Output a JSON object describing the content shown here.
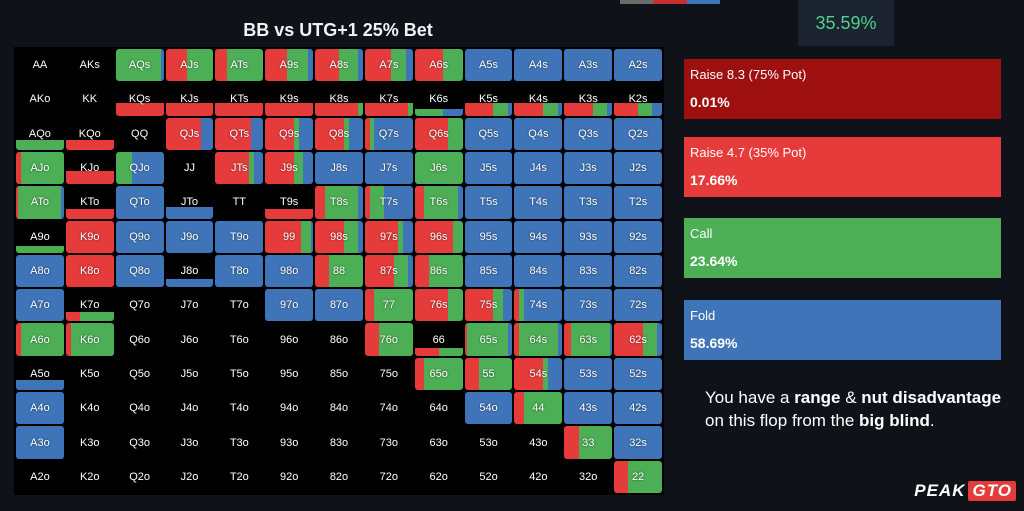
{
  "header": {
    "title": "BB vs UTG+1 25% Bet",
    "top_pct": "35.59%"
  },
  "colors": {
    "raise_big": "#9e0f0f",
    "raise_small": "#e53b3b",
    "call": "#4cae55",
    "fold": "#3f74b8"
  },
  "legend": [
    {
      "name": "Raise 8.3 (75% Pot)",
      "value": "0.01%",
      "color": "#9e0f0f"
    },
    {
      "name": "Raise 4.7 (35% Pot)",
      "value": "17.66%",
      "color": "#e53b3b"
    },
    {
      "name": "Call",
      "value": "23.64%",
      "color": "#4cae55"
    },
    {
      "name": "Fold",
      "value": "58.69%",
      "color": "#3f74b8"
    }
  ],
  "message": {
    "p1": "You have a ",
    "b1": "range",
    "p2": " & ",
    "b2": "nut disadvantage",
    "p3": " on this flop from the ",
    "b3": "big blind",
    "p4": "."
  },
  "logo": {
    "peak": "PEAK",
    "gto": "GTO"
  },
  "range": {
    "rows": [
      [
        "AA",
        "AKs",
        "AQs",
        "AJs",
        "ATs",
        "A9s",
        "A8s",
        "A7s",
        "A6s",
        "A5s",
        "A4s",
        "A3s",
        "A2s"
      ],
      [
        "AKo",
        "KK",
        "KQs",
        "KJs",
        "KTs",
        "K9s",
        "K8s",
        "K7s",
        "K6s",
        "K5s",
        "K4s",
        "K3s",
        "K2s"
      ],
      [
        "AQo",
        "KQo",
        "QQ",
        "QJs",
        "QTs",
        "Q9s",
        "Q8s",
        "Q7s",
        "Q6s",
        "Q5s",
        "Q4s",
        "Q3s",
        "Q2s"
      ],
      [
        "AJo",
        "KJo",
        "QJo",
        "JJ",
        "JTs",
        "J9s",
        "J8s",
        "J7s",
        "J6s",
        "J5s",
        "J4s",
        "J3s",
        "J2s"
      ],
      [
        "ATo",
        "KTo",
        "QTo",
        "JTo",
        "TT",
        "T9s",
        "T8s",
        "T7s",
        "T6s",
        "T5s",
        "T4s",
        "T3s",
        "T2s"
      ],
      [
        "A9o",
        "K9o",
        "Q9o",
        "J9o",
        "T9o",
        "99",
        "98s",
        "97s",
        "96s",
        "95s",
        "94s",
        "93s",
        "92s"
      ],
      [
        "A8o",
        "K8o",
        "Q8o",
        "J8o",
        "T8o",
        "98o",
        "88",
        "87s",
        "86s",
        "85s",
        "84s",
        "83s",
        "82s"
      ],
      [
        "A7o",
        "K7o",
        "Q7o",
        "J7o",
        "T7o",
        "97o",
        "87o",
        "77",
        "76s",
        "75s",
        "74s",
        "73s",
        "72s"
      ],
      [
        "A6o",
        "K6o",
        "Q6o",
        "J6o",
        "T6o",
        "96o",
        "86o",
        "76o",
        "66",
        "65s",
        "64s",
        "63s",
        "62s"
      ],
      [
        "A5o",
        "K5o",
        "Q5o",
        "J5o",
        "T5o",
        "95o",
        "85o",
        "75o",
        "65o",
        "55",
        "54s",
        "53s",
        "52s"
      ],
      [
        "A4o",
        "K4o",
        "Q4o",
        "J4o",
        "T4o",
        "94o",
        "84o",
        "74o",
        "64o",
        "54o",
        "44",
        "43s",
        "42s"
      ],
      [
        "A3o",
        "K3o",
        "Q3o",
        "J3o",
        "T3o",
        "93o",
        "83o",
        "73o",
        "63o",
        "53o",
        "43o",
        "33",
        "32s"
      ],
      [
        "A2o",
        "K2o",
        "Q2o",
        "J2o",
        "T2o",
        "92o",
        "82o",
        "72o",
        "62o",
        "52o",
        "42o",
        "32o",
        "22"
      ]
    ],
    "strategies": {
      "AQs": {
        "h": 1,
        "m": [
          0,
          0,
          0.95,
          0.05
        ]
      },
      "AJs": {
        "h": 1,
        "m": [
          0,
          0.45,
          0.55,
          0
        ]
      },
      "ATs": {
        "h": 1,
        "m": [
          0,
          0.25,
          0.75,
          0
        ]
      },
      "A9s": {
        "h": 1,
        "m": [
          0,
          0.45,
          0.45,
          0.1
        ]
      },
      "A8s": {
        "h": 1,
        "m": [
          0,
          0.5,
          0.4,
          0.1
        ]
      },
      "A7s": {
        "h": 1,
        "m": [
          0,
          0.55,
          0.3,
          0.15
        ]
      },
      "A6s": {
        "h": 1,
        "m": [
          0,
          0.6,
          0.4,
          0
        ]
      },
      "A5s": {
        "h": 1,
        "m": [
          0,
          0,
          0,
          1
        ]
      },
      "A4s": {
        "h": 1,
        "m": [
          0,
          0,
          0,
          1
        ]
      },
      "A3s": {
        "h": 1,
        "m": [
          0,
          0,
          0,
          1
        ]
      },
      "A2s": {
        "h": 1,
        "m": [
          0,
          0,
          0,
          1
        ]
      },
      "KQs": {
        "h": 0.4,
        "m": [
          0,
          1,
          0,
          0
        ]
      },
      "KJs": {
        "h": 0.4,
        "m": [
          0,
          1,
          0,
          0
        ]
      },
      "KTs": {
        "h": 0.4,
        "m": [
          0,
          1,
          0,
          0
        ]
      },
      "K9s": {
        "h": 0.4,
        "m": [
          0,
          1,
          0,
          0
        ]
      },
      "K8s": {
        "h": 0.4,
        "m": [
          0,
          0.9,
          0.1,
          0
        ]
      },
      "K7s": {
        "h": 0.4,
        "m": [
          0,
          0.9,
          0.1,
          0
        ]
      },
      "K6s": {
        "h": 0.2,
        "m": [
          0,
          0,
          0.6,
          0.4
        ]
      },
      "K5s": {
        "h": 0.4,
        "m": [
          0,
          0.6,
          0.3,
          0.1
        ]
      },
      "K4s": {
        "h": 0.4,
        "m": [
          0,
          0.6,
          0.3,
          0.1
        ]
      },
      "K3s": {
        "h": 0.4,
        "m": [
          0,
          0.6,
          0.3,
          0.1
        ]
      },
      "K2s": {
        "h": 0.4,
        "m": [
          0,
          0.5,
          0.3,
          0.2
        ]
      },
      "AQo": {
        "h": 0.3,
        "m": [
          0,
          0,
          1,
          0
        ]
      },
      "KQo": {
        "h": 0.3,
        "m": [
          0,
          1,
          0,
          0
        ]
      },
      "QJs": {
        "h": 1,
        "m": [
          0,
          0.75,
          0,
          0.25
        ]
      },
      "QTs": {
        "h": 1,
        "m": [
          0,
          0.75,
          0,
          0.25
        ]
      },
      "Q9s": {
        "h": 1,
        "m": [
          0,
          0.6,
          0.1,
          0.3
        ]
      },
      "Q8s": {
        "h": 1,
        "m": [
          0,
          0.6,
          0.1,
          0.3
        ]
      },
      "Q7s": {
        "h": 1,
        "m": [
          0,
          0.1,
          0.1,
          0.8
        ]
      },
      "Q6s": {
        "h": 1,
        "m": [
          0,
          0.7,
          0.3,
          0
        ]
      },
      "Q5s": {
        "h": 1,
        "m": [
          0,
          0,
          0,
          1
        ]
      },
      "Q4s": {
        "h": 1,
        "m": [
          0,
          0,
          0,
          1
        ]
      },
      "Q3s": {
        "h": 1,
        "m": [
          0,
          0,
          0,
          1
        ]
      },
      "Q2s": {
        "h": 1,
        "m": [
          0,
          0,
          0,
          1
        ]
      },
      "AJo": {
        "h": 1,
        "m": [
          0,
          0.1,
          0.9,
          0
        ]
      },
      "KJo": {
        "h": 0.4,
        "m": [
          0,
          1,
          0,
          0
        ]
      },
      "QJo": {
        "h": 1,
        "m": [
          0,
          0,
          0.35,
          0.65
        ]
      },
      "JTs": {
        "h": 1,
        "m": [
          0,
          0.7,
          0.1,
          0.2
        ]
      },
      "J9s": {
        "h": 1,
        "m": [
          0,
          0.6,
          0.2,
          0.2
        ]
      },
      "J8s": {
        "h": 1,
        "m": [
          0,
          0,
          0,
          1
        ]
      },
      "J7s": {
        "h": 1,
        "m": [
          0,
          0,
          0,
          1
        ]
      },
      "J6s": {
        "h": 1,
        "m": [
          0,
          0,
          1,
          0
        ]
      },
      "J5s": {
        "h": 1,
        "m": [
          0,
          0,
          0,
          1
        ]
      },
      "J4s": {
        "h": 1,
        "m": [
          0,
          0,
          0,
          1
        ]
      },
      "J3s": {
        "h": 1,
        "m": [
          0,
          0,
          0,
          1
        ]
      },
      "J2s": {
        "h": 1,
        "m": [
          0,
          0,
          0,
          1
        ]
      },
      "ATo": {
        "h": 1,
        "m": [
          0,
          0.05,
          0.9,
          0.05
        ]
      },
      "KTo": {
        "h": 0.3,
        "m": [
          0,
          1,
          0,
          0
        ]
      },
      "QTo": {
        "h": 1,
        "m": [
          0,
          0,
          0,
          1
        ]
      },
      "JTo": {
        "h": 0.35,
        "m": [
          0,
          0,
          0,
          1
        ]
      },
      "T9s": {
        "h": 0.3,
        "m": [
          0,
          1,
          0,
          0
        ]
      },
      "T8s": {
        "h": 1,
        "m": [
          0,
          0.2,
          0.7,
          0.1
        ]
      },
      "T7s": {
        "h": 1,
        "m": [
          0,
          0.1,
          0.3,
          0.6
        ]
      },
      "T6s": {
        "h": 1,
        "m": [
          0,
          0.2,
          0.7,
          0.1
        ]
      },
      "T5s": {
        "h": 1,
        "m": [
          0,
          0,
          0,
          1
        ]
      },
      "T4s": {
        "h": 1,
        "m": [
          0,
          0,
          0,
          1
        ]
      },
      "T3s": {
        "h": 1,
        "m": [
          0,
          0,
          0,
          1
        ]
      },
      "T2s": {
        "h": 1,
        "m": [
          0,
          0,
          0,
          1
        ]
      },
      "A9o": {
        "h": 0.2,
        "m": [
          0,
          0,
          1,
          0
        ]
      },
      "K9o": {
        "h": 1,
        "m": [
          0,
          1,
          0,
          0
        ]
      },
      "Q9o": {
        "h": 1,
        "m": [
          0,
          0,
          0,
          1
        ]
      },
      "J9o": {
        "h": 1,
        "m": [
          0,
          0,
          0,
          1
        ]
      },
      "T9o": {
        "h": 1,
        "m": [
          0,
          0,
          0,
          1
        ]
      },
      "99": {
        "h": 1,
        "m": [
          0,
          0.75,
          0.2,
          0.05
        ]
      },
      "98s": {
        "h": 1,
        "m": [
          0,
          0.6,
          0.3,
          0.1
        ]
      },
      "97s": {
        "h": 1,
        "m": [
          0,
          0.7,
          0.1,
          0.2
        ]
      },
      "96s": {
        "h": 1,
        "m": [
          0,
          0.8,
          0.2,
          0
        ]
      },
      "95s": {
        "h": 1,
        "m": [
          0,
          0,
          0,
          1
        ]
      },
      "94s": {
        "h": 1,
        "m": [
          0,
          0,
          0,
          1
        ]
      },
      "93s": {
        "h": 1,
        "m": [
          0,
          0,
          0,
          1
        ]
      },
      "92s": {
        "h": 1,
        "m": [
          0,
          0,
          0,
          1
        ]
      },
      "A8o": {
        "h": 1,
        "m": [
          0,
          0,
          0,
          1
        ]
      },
      "K8o": {
        "h": 1,
        "m": [
          0,
          1,
          0,
          0
        ]
      },
      "Q8o": {
        "h": 1,
        "m": [
          0,
          0,
          0,
          1
        ]
      },
      "J8o": {
        "h": 0.25,
        "m": [
          0,
          0,
          0,
          1
        ]
      },
      "T8o": {
        "h": 1,
        "m": [
          0,
          0,
          0,
          1
        ]
      },
      "98o": {
        "h": 1,
        "m": [
          0,
          0,
          0,
          1
        ]
      },
      "88": {
        "h": 1,
        "m": [
          0,
          0.3,
          0.7,
          0
        ]
      },
      "87s": {
        "h": 1,
        "m": [
          0,
          0.6,
          0.3,
          0.1
        ]
      },
      "86s": {
        "h": 1,
        "m": [
          0,
          0.3,
          0.7,
          0
        ]
      },
      "85s": {
        "h": 1,
        "m": [
          0,
          0,
          0,
          1
        ]
      },
      "84s": {
        "h": 1,
        "m": [
          0,
          0,
          0,
          1
        ]
      },
      "83s": {
        "h": 1,
        "m": [
          0,
          0,
          0,
          1
        ]
      },
      "82s": {
        "h": 1,
        "m": [
          0,
          0,
          0,
          1
        ]
      },
      "A7o": {
        "h": 1,
        "m": [
          0,
          0,
          0,
          1
        ]
      },
      "K7o": {
        "h": 0.3,
        "m": [
          0,
          0.3,
          0.7,
          0
        ]
      },
      "97o": {
        "h": 1,
        "m": [
          0,
          0,
          0,
          1
        ]
      },
      "87o": {
        "h": 1,
        "m": [
          0,
          0,
          0,
          1
        ]
      },
      "77": {
        "h": 1,
        "m": [
          0,
          0.2,
          0.8,
          0
        ]
      },
      "76s": {
        "h": 1,
        "m": [
          0,
          0.7,
          0.3,
          0
        ]
      },
      "75s": {
        "h": 1,
        "m": [
          0,
          0.6,
          0.2,
          0.2
        ]
      },
      "74s": {
        "h": 1,
        "m": [
          0,
          0.1,
          0.1,
          0.8
        ]
      },
      "73s": {
        "h": 1,
        "m": [
          0,
          0,
          0,
          1
        ]
      },
      "72s": {
        "h": 1,
        "m": [
          0,
          0,
          0,
          1
        ]
      },
      "A6o": {
        "h": 1,
        "m": [
          0,
          0.1,
          0.9,
          0
        ]
      },
      "K6o": {
        "h": 1,
        "m": [
          0,
          0.1,
          0.9,
          0
        ]
      },
      "76o": {
        "h": 1,
        "m": [
          0,
          0.3,
          0.7,
          0
        ]
      },
      "66": {
        "h": 0.25,
        "m": [
          0,
          0.5,
          0.5,
          0
        ]
      },
      "65s": {
        "h": 1,
        "m": [
          0,
          0.05,
          0.85,
          0.1
        ]
      },
      "64s": {
        "h": 1,
        "m": [
          0,
          0.1,
          0.8,
          0.1
        ]
      },
      "63s": {
        "h": 1,
        "m": [
          0,
          0.15,
          0.8,
          0.05
        ]
      },
      "62s": {
        "h": 1,
        "m": [
          0,
          0.6,
          0.3,
          0.1
        ]
      },
      "A5o": {
        "h": 0.3,
        "m": [
          0,
          0,
          0,
          1
        ]
      },
      "65o": {
        "h": 1,
        "m": [
          0,
          0.2,
          0.8,
          0
        ]
      },
      "55": {
        "h": 1,
        "m": [
          0,
          0.3,
          0.7,
          0
        ]
      },
      "54s": {
        "h": 1,
        "m": [
          0,
          0.6,
          0.1,
          0.3
        ]
      },
      "53s": {
        "h": 1,
        "m": [
          0,
          0,
          0,
          1
        ]
      },
      "52s": {
        "h": 1,
        "m": [
          0,
          0,
          0,
          1
        ]
      },
      "A4o": {
        "h": 1,
        "m": [
          0,
          0,
          0,
          1
        ]
      },
      "54o": {
        "h": 1,
        "m": [
          0,
          0,
          0,
          1
        ]
      },
      "44": {
        "h": 1,
        "m": [
          0,
          0.2,
          0.8,
          0
        ]
      },
      "43s": {
        "h": 1,
        "m": [
          0,
          0,
          0,
          1
        ]
      },
      "42s": {
        "h": 1,
        "m": [
          0,
          0,
          0,
          1
        ]
      },
      "A3o": {
        "h": 1,
        "m": [
          0,
          0,
          0,
          1
        ]
      },
      "33": {
        "h": 1,
        "m": [
          0,
          0.3,
          0.7,
          0
        ]
      },
      "32s": {
        "h": 1,
        "m": [
          0,
          0,
          0,
          1
        ]
      },
      "22": {
        "h": 1,
        "m": [
          0,
          0.3,
          0.7,
          0
        ]
      }
    }
  }
}
